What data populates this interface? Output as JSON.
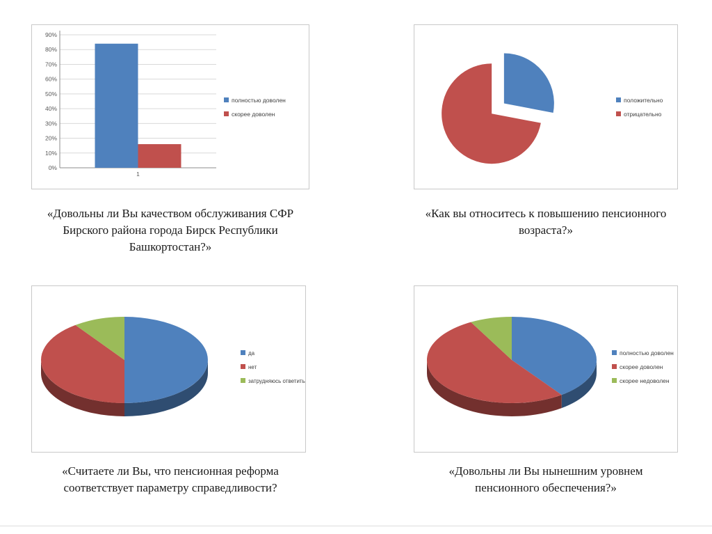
{
  "slide": {
    "background": "#ffffff"
  },
  "palette": {
    "blue": "#4F81BD",
    "red": "#C0504D",
    "green": "#9BBB59",
    "panel_border": "#c8c8c8",
    "grid": "#d9d9d9",
    "axis": "#8c8c8c",
    "tick_text": "#595959",
    "legend_text": "#3f3f3f",
    "caption_text": "#1a1a1a"
  },
  "chart_data": [
    {
      "type": "bar",
      "caption": "«Довольны ли Вы качеством обслуживания СФР Бирского района города Бирск Республики Башкортостан?»",
      "categories": [
        "1"
      ],
      "series": [
        {
          "name": "полностью доволен",
          "color": "#4F81BD",
          "values": [
            84
          ]
        },
        {
          "name": "скорее доволен",
          "color": "#C0504D",
          "values": [
            16
          ]
        }
      ],
      "ylim": [
        0,
        90
      ],
      "ystep": 10,
      "ytick_suffix": "%",
      "grid": true,
      "legend_position": "right"
    },
    {
      "type": "pie",
      "caption": "«Как вы относитесь к повышению пенсионного возраста?»",
      "slices": [
        {
          "name": "положительно",
          "color": "#4F81BD",
          "value": 28,
          "explode": 18
        },
        {
          "name": "отрицательно",
          "color": "#C0504D",
          "value": 72,
          "explode": 5
        }
      ],
      "legend_position": "right"
    },
    {
      "type": "pie3d",
      "caption": "«Считаете ли Вы, что пенсионная реформа соответствует параметру справедливости?",
      "slices": [
        {
          "name": "да",
          "color": "#4F81BD",
          "value": 50
        },
        {
          "name": "нет",
          "color": "#C0504D",
          "value": 40
        },
        {
          "name": "затрудняюсь ответить",
          "color": "#9BBB59",
          "value": 10
        }
      ],
      "legend_position": "right"
    },
    {
      "type": "pie3d",
      "caption": "«Довольны ли Вы нынешним уровнем пенсионного обеспечения?»",
      "slices": [
        {
          "name": "полностью доволен",
          "color": "#4F81BD",
          "value": 40
        },
        {
          "name": "скорее доволен",
          "color": "#C0504D",
          "value": 52
        },
        {
          "name": "скорее недоволен",
          "color": "#9BBB59",
          "value": 8
        }
      ],
      "legend_position": "right"
    }
  ]
}
